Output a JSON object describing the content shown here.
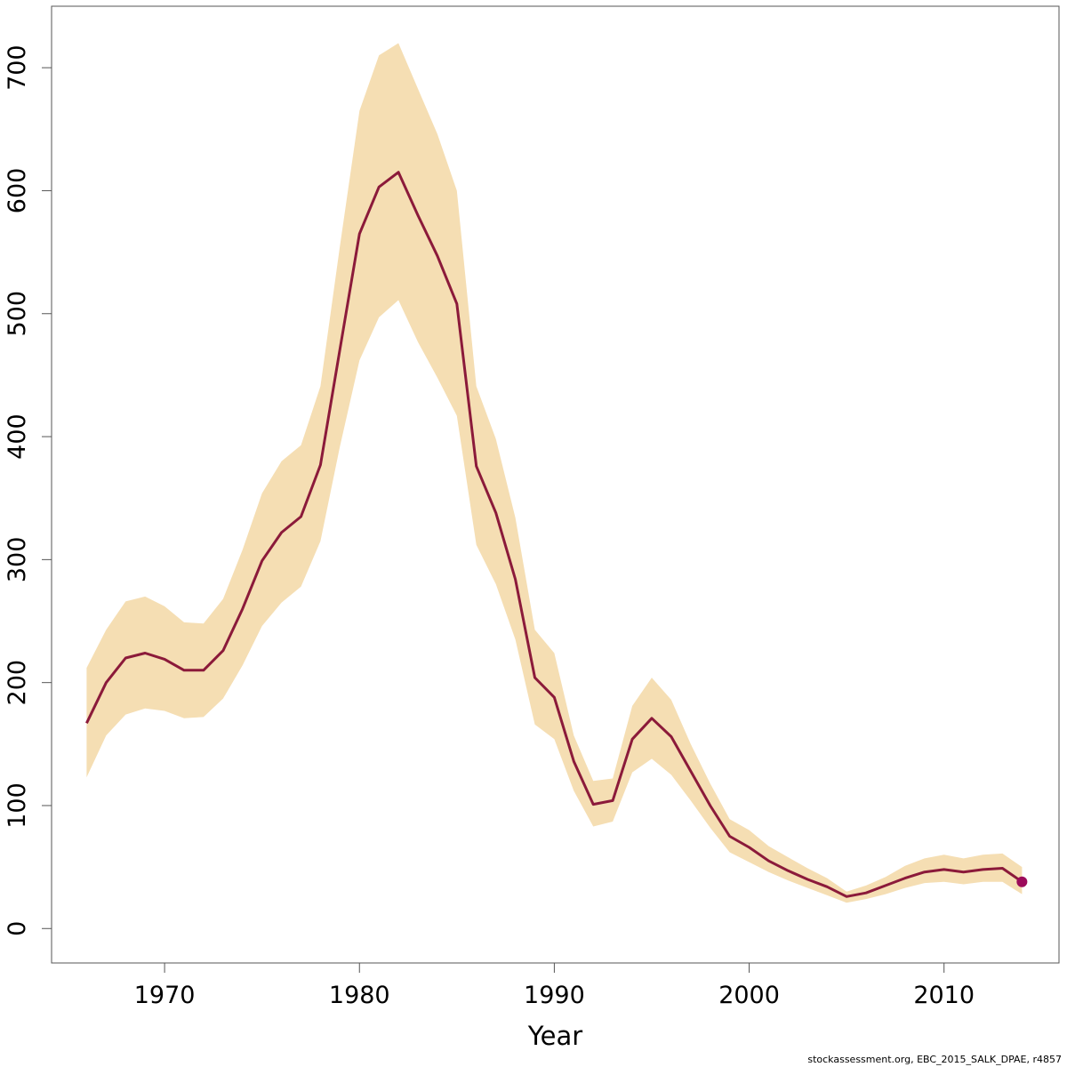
{
  "chart_data": {
    "type": "area",
    "title": "",
    "xlabel": "Year",
    "ylabel": "",
    "xlim": [
      1964.2,
      2015.9
    ],
    "ylim": [
      -28,
      750
    ],
    "x_ticks": [
      1970,
      1980,
      1990,
      2000,
      2010
    ],
    "y_ticks": [
      0,
      100,
      200,
      300,
      400,
      500,
      600,
      700
    ],
    "grid": false,
    "legend": "none",
    "colors": {
      "line": "#8b1a3a",
      "band": "#f5deb3",
      "point": "#9c0b5a",
      "axis": "#555555"
    },
    "x": [
      1966,
      1967,
      1968,
      1969,
      1970,
      1971,
      1972,
      1973,
      1974,
      1975,
      1976,
      1977,
      1978,
      1979,
      1980,
      1981,
      1982,
      1983,
      1984,
      1985,
      1986,
      1987,
      1988,
      1989,
      1990,
      1991,
      1992,
      1993,
      1994,
      1995,
      1996,
      1997,
      1998,
      1999,
      2000,
      2001,
      2002,
      2003,
      2004,
      2005,
      2006,
      2007,
      2008,
      2009,
      2010,
      2011,
      2012,
      2013,
      2014
    ],
    "series": [
      {
        "values": [
          167,
          200,
          220,
          224,
          219,
          210,
          210,
          226,
          260,
          299,
          322,
          335,
          377,
          471,
          565,
          603,
          615,
          580,
          547,
          508,
          376,
          338,
          284,
          204,
          188,
          136,
          101,
          104,
          154,
          171,
          156,
          128,
          100,
          75,
          66,
          55,
          47,
          40,
          34,
          26,
          29,
          35,
          41,
          46,
          48,
          46,
          48,
          49,
          38
        ]
      }
    ],
    "band_upper": [
      212,
      243,
      266,
      270,
      262,
      249,
      248,
      268,
      308,
      354,
      380,
      393,
      441,
      555,
      665,
      710,
      720,
      683,
      646,
      600,
      441,
      398,
      334,
      243,
      224,
      157,
      120,
      122,
      181,
      204,
      186,
      150,
      118,
      89,
      80,
      67,
      58,
      49,
      41,
      30,
      35,
      42,
      51,
      57,
      60,
      57,
      60,
      61,
      50
    ],
    "band_lower": [
      123,
      157,
      174,
      179,
      177,
      171,
      172,
      187,
      214,
      246,
      265,
      278,
      315,
      392,
      462,
      497,
      511,
      477,
      448,
      417,
      312,
      280,
      235,
      166,
      154,
      112,
      83,
      87,
      127,
      138,
      125,
      104,
      82,
      62,
      54,
      46,
      39,
      33,
      27,
      21,
      24,
      28,
      33,
      37,
      38,
      36,
      38,
      38,
      28
    ],
    "highlight_point": {
      "x": 2014,
      "y": 38
    }
  },
  "footer": {
    "credit": "stockassessment.org, EBC_2015_SALK_DPAE, r4857"
  }
}
